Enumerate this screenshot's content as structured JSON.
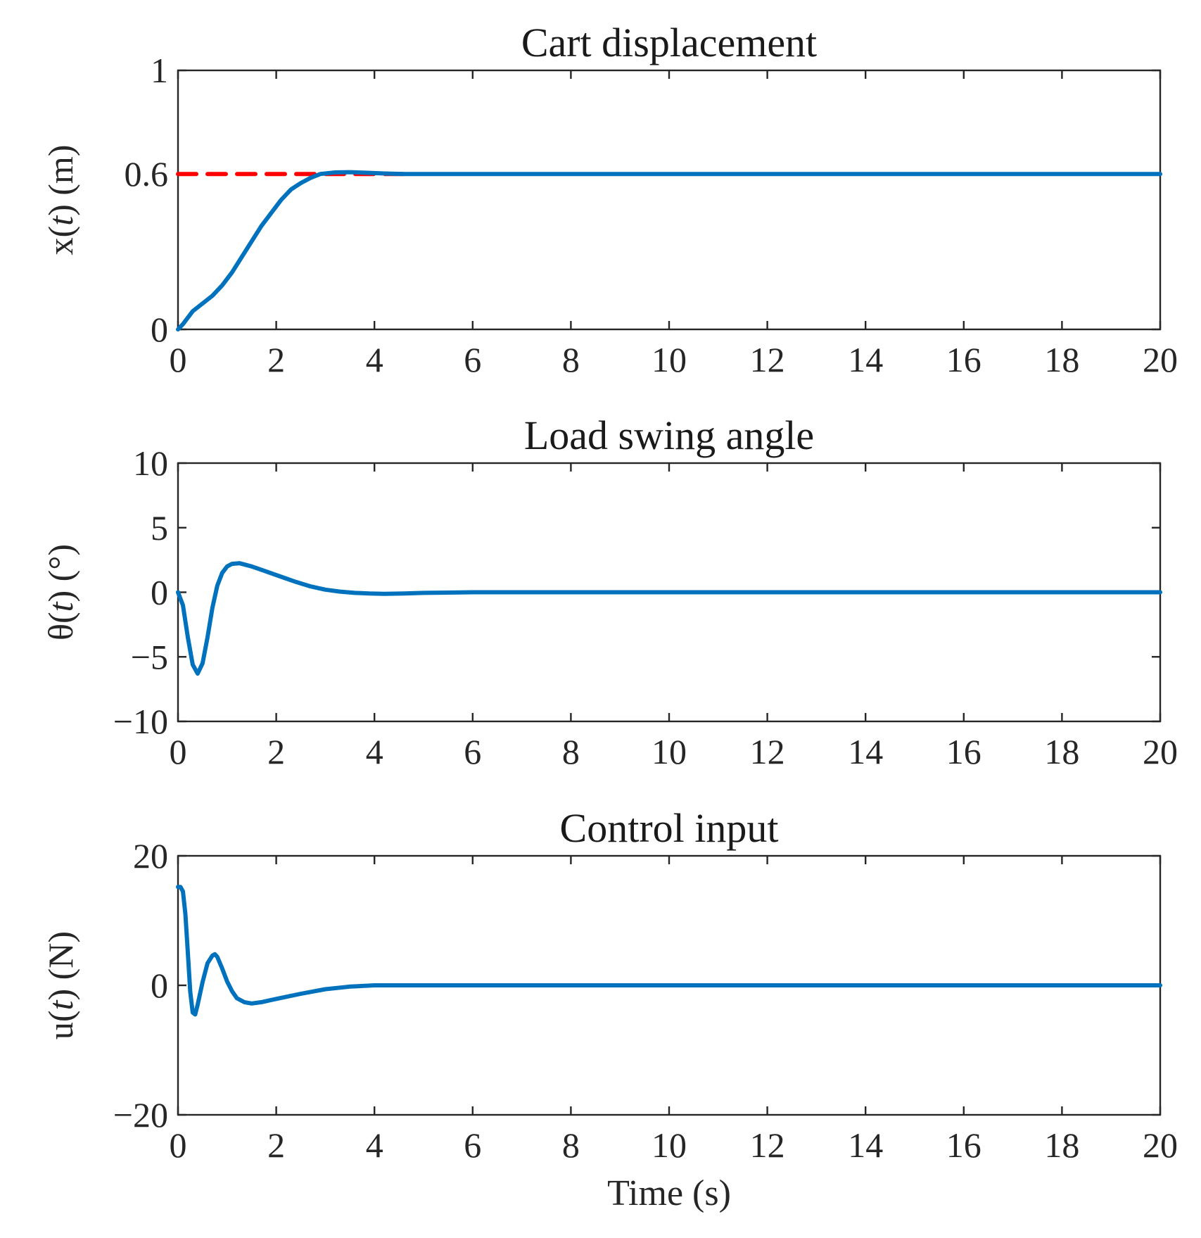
{
  "colors": {
    "response": "#0072BD",
    "reference": "#FF0000",
    "axes": "#262626"
  },
  "chart_data": [
    {
      "type": "line",
      "title": "Cart displacement",
      "xlabel": "",
      "ylabel": "x(t) (m)",
      "ylabel_var": "x",
      "ylabel_unit": "(m)",
      "xlim": [
        0,
        20
      ],
      "ylim": [
        0,
        1
      ],
      "xticks": [
        0,
        2,
        4,
        6,
        8,
        10,
        12,
        14,
        16,
        18,
        20
      ],
      "xtick_labels": [
        "0",
        "2",
        "4",
        "6",
        "8",
        "10",
        "12",
        "14",
        "16",
        "18",
        "20"
      ],
      "yticks": [
        0,
        0.6,
        1
      ],
      "ytick_labels": [
        "0",
        "0.6",
        "1"
      ],
      "grid": false,
      "series": [
        {
          "name": "reference",
          "style": "dashed",
          "color": "#FF0000",
          "x": [
            0,
            4.7
          ],
          "y": [
            0.6,
            0.6
          ]
        },
        {
          "name": "x(t)",
          "style": "solid",
          "color": "#0072BD",
          "x": [
            0,
            0.1,
            0.3,
            0.5,
            0.7,
            0.9,
            1.1,
            1.3,
            1.5,
            1.7,
            1.9,
            2.1,
            2.3,
            2.5,
            2.7,
            2.9,
            3.2,
            3.5,
            3.8,
            4.2,
            4.6,
            5.0,
            6.0,
            8.0,
            10.0,
            12.0,
            14.0,
            16.0,
            18.0,
            20.0
          ],
          "y": [
            0,
            0.02,
            0.07,
            0.1,
            0.13,
            0.17,
            0.22,
            0.28,
            0.34,
            0.4,
            0.45,
            0.5,
            0.54,
            0.565,
            0.585,
            0.6,
            0.606,
            0.607,
            0.605,
            0.602,
            0.6,
            0.6,
            0.6,
            0.6,
            0.6,
            0.6,
            0.6,
            0.6,
            0.6,
            0.6
          ]
        }
      ]
    },
    {
      "type": "line",
      "title": "Load swing angle",
      "xlabel": "",
      "ylabel": "θ(t) (°)",
      "ylabel_var": "θ",
      "ylabel_unit": "(°)",
      "xlim": [
        0,
        20
      ],
      "ylim": [
        -10,
        10
      ],
      "xticks": [
        0,
        2,
        4,
        6,
        8,
        10,
        12,
        14,
        16,
        18,
        20
      ],
      "xtick_labels": [
        "0",
        "2",
        "4",
        "6",
        "8",
        "10",
        "12",
        "14",
        "16",
        "18",
        "20"
      ],
      "yticks": [
        -10,
        -5,
        0,
        5,
        10
      ],
      "ytick_labels": [
        "−10",
        "−5",
        "0",
        "5",
        "10"
      ],
      "grid": false,
      "series": [
        {
          "name": "θ(t)",
          "style": "solid",
          "color": "#0072BD",
          "x": [
            0,
            0.1,
            0.2,
            0.3,
            0.4,
            0.5,
            0.6,
            0.7,
            0.8,
            0.9,
            1.0,
            1.1,
            1.25,
            1.5,
            1.8,
            2.1,
            2.4,
            2.7,
            3.0,
            3.3,
            3.6,
            3.9,
            4.2,
            4.6,
            5.0,
            6.0,
            8.0,
            10.0,
            14.0,
            20.0
          ],
          "y": [
            0,
            -1.0,
            -3.5,
            -5.6,
            -6.3,
            -5.5,
            -3.5,
            -1.2,
            0.5,
            1.5,
            2.0,
            2.2,
            2.25,
            2.0,
            1.6,
            1.2,
            0.8,
            0.45,
            0.2,
            0.05,
            -0.05,
            -0.1,
            -0.12,
            -0.1,
            -0.05,
            0,
            0,
            0,
            0,
            0
          ]
        }
      ]
    },
    {
      "type": "line",
      "title": "Control input",
      "xlabel": "Time (s)",
      "ylabel": "u(t) (N)",
      "ylabel_var": "u",
      "ylabel_unit": "(N)",
      "xlim": [
        0,
        20
      ],
      "ylim": [
        -20,
        20
      ],
      "xticks": [
        0,
        2,
        4,
        6,
        8,
        10,
        12,
        14,
        16,
        18,
        20
      ],
      "xtick_labels": [
        "0",
        "2",
        "4",
        "6",
        "8",
        "10",
        "12",
        "14",
        "16",
        "18",
        "20"
      ],
      "yticks": [
        -20,
        0,
        20
      ],
      "ytick_labels": [
        "−20",
        "0",
        "20"
      ],
      "grid": false,
      "series": [
        {
          "name": "u(t)",
          "style": "solid",
          "color": "#0072BD",
          "x": [
            0,
            0.05,
            0.1,
            0.15,
            0.2,
            0.25,
            0.3,
            0.35,
            0.4,
            0.5,
            0.6,
            0.7,
            0.75,
            0.8,
            0.9,
            1.0,
            1.1,
            1.2,
            1.35,
            1.5,
            1.7,
            2.0,
            2.5,
            3.0,
            3.5,
            4.0,
            5.0,
            6.0,
            8.0,
            12.0,
            20.0
          ],
          "y": [
            15.2,
            15.2,
            14.5,
            11.0,
            5.0,
            -1.0,
            -4.2,
            -4.5,
            -3.0,
            0.5,
            3.4,
            4.6,
            4.8,
            4.4,
            2.6,
            0.6,
            -0.9,
            -2.0,
            -2.6,
            -2.8,
            -2.6,
            -2.1,
            -1.3,
            -0.6,
            -0.2,
            0,
            0,
            0,
            0,
            0,
            0
          ]
        }
      ]
    }
  ]
}
